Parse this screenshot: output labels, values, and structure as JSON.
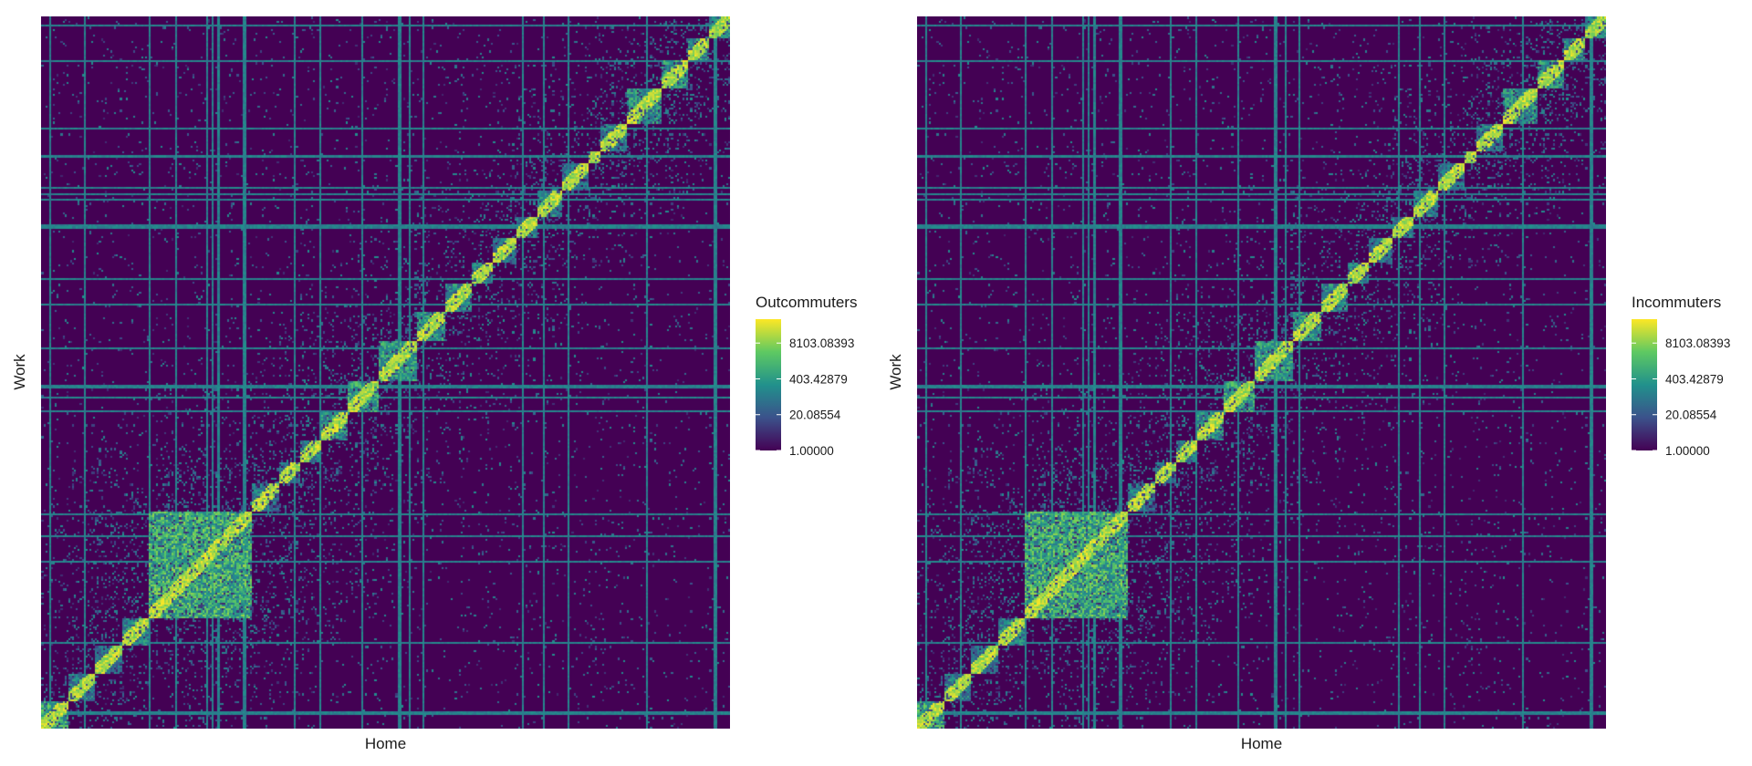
{
  "chart_data": [
    {
      "type": "heatmap",
      "title": "",
      "xlabel": "Home",
      "ylabel": "Work",
      "legend_title": "Outcommuters",
      "legend_position": "right",
      "scale": "log",
      "colormap": [
        "#440154",
        "#3b528b",
        "#21918c",
        "#5ec962",
        "#fde725"
      ],
      "legend_breaks": [
        1.0,
        20.08554,
        403.42879,
        8103.08393
      ],
      "legend_labels": [
        "1.00000",
        "20.08554",
        "403.42879",
        "8103.08393"
      ],
      "value_range": [
        1,
        60000
      ],
      "blocks": [
        0,
        0.038,
        0.078,
        0.118,
        0.155,
        0.305,
        0.345,
        0.375,
        0.405,
        0.445,
        0.49,
        0.545,
        0.585,
        0.625,
        0.655,
        0.69,
        0.72,
        0.755,
        0.795,
        0.81,
        0.85,
        0.9,
        0.94,
        0.97,
        1.0
      ],
      "block_intensity": [
        0.95,
        0.7,
        0.6,
        0.75,
        1.0,
        0.65,
        0.6,
        0.65,
        0.8,
        0.9,
        0.85,
        0.8,
        0.75,
        0.7,
        0.6,
        0.65,
        0.7,
        0.6,
        0.55,
        0.7,
        0.8,
        0.85,
        0.8,
        0.75
      ],
      "seed": 7
    },
    {
      "type": "heatmap",
      "title": "",
      "xlabel": "Home",
      "ylabel": "Work",
      "legend_title": "Incommuters",
      "legend_position": "right",
      "scale": "log",
      "colormap": [
        "#440154",
        "#3b528b",
        "#21918c",
        "#5ec962",
        "#fde725"
      ],
      "legend_breaks": [
        1.0,
        20.08554,
        403.42879,
        8103.08393
      ],
      "legend_labels": [
        "1.00000",
        "20.08554",
        "403.42879",
        "8103.08393"
      ],
      "value_range": [
        1,
        60000
      ],
      "blocks": [
        0,
        0.038,
        0.078,
        0.118,
        0.155,
        0.305,
        0.345,
        0.375,
        0.405,
        0.445,
        0.49,
        0.545,
        0.585,
        0.625,
        0.655,
        0.69,
        0.72,
        0.755,
        0.795,
        0.81,
        0.85,
        0.9,
        0.94,
        0.97,
        1.0
      ],
      "block_intensity": [
        0.95,
        0.7,
        0.6,
        0.75,
        1.0,
        0.65,
        0.6,
        0.65,
        0.8,
        0.9,
        0.85,
        0.8,
        0.75,
        0.7,
        0.6,
        0.65,
        0.7,
        0.6,
        0.55,
        0.7,
        0.8,
        0.85,
        0.8,
        0.75
      ],
      "seed": 7
    }
  ]
}
